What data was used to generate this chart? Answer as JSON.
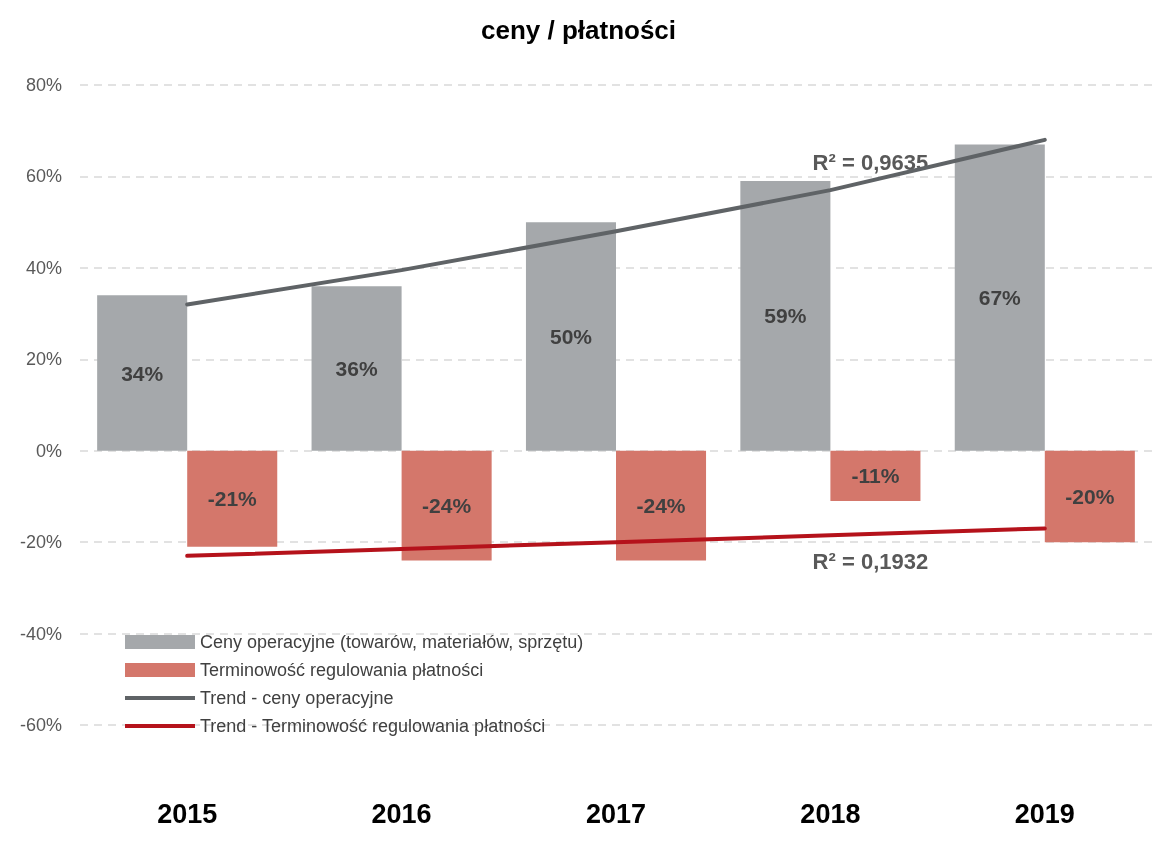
{
  "chart_data": {
    "type": "bar",
    "title": "ceny / płatności",
    "categories": [
      "2015",
      "2016",
      "2017",
      "2018",
      "2019"
    ],
    "series": [
      {
        "name": "Ceny operacyjne (towarów, materiałów, sprzętu)",
        "color": "#a5a8ab",
        "values": [
          34,
          36,
          50,
          59,
          67
        ],
        "value_labels": [
          "34%",
          "36%",
          "50%",
          "59%",
          "67%"
        ]
      },
      {
        "name": "Terminowość regulowania płatności",
        "color": "#d4776b",
        "values": [
          -21,
          -24,
          -24,
          -11,
          -20
        ],
        "value_labels": [
          "-21%",
          "-24%",
          "-24%",
          "-11%",
          "-20%"
        ]
      },
      {
        "name": "Trend - ceny operacyjne",
        "type": "line",
        "color": "#5f6366",
        "values": [
          32,
          39.5,
          48,
          57,
          68
        ]
      },
      {
        "name": "Trend - Terminowość regulowania płatności",
        "type": "line",
        "color": "#b5121b",
        "values": [
          -23,
          -21.5,
          -20,
          -18.5,
          -17
        ]
      }
    ],
    "ylim": [
      -60,
      80
    ],
    "yticks": [
      {
        "value": -60,
        "label": "-60%"
      },
      {
        "value": -40,
        "label": "-40%"
      },
      {
        "value": -20,
        "label": "-20%"
      },
      {
        "value": 0,
        "label": "0%"
      },
      {
        "value": 20,
        "label": "20%"
      },
      {
        "value": 40,
        "label": "40%"
      },
      {
        "value": 60,
        "label": "60%"
      },
      {
        "value": 80,
        "label": "80%"
      }
    ],
    "grid": "y",
    "legend": "bottom left",
    "marker": "none",
    "line_style": "solid",
    "annotations": [
      "R² = 0,9635",
      "R² = 0,1932"
    ]
  }
}
